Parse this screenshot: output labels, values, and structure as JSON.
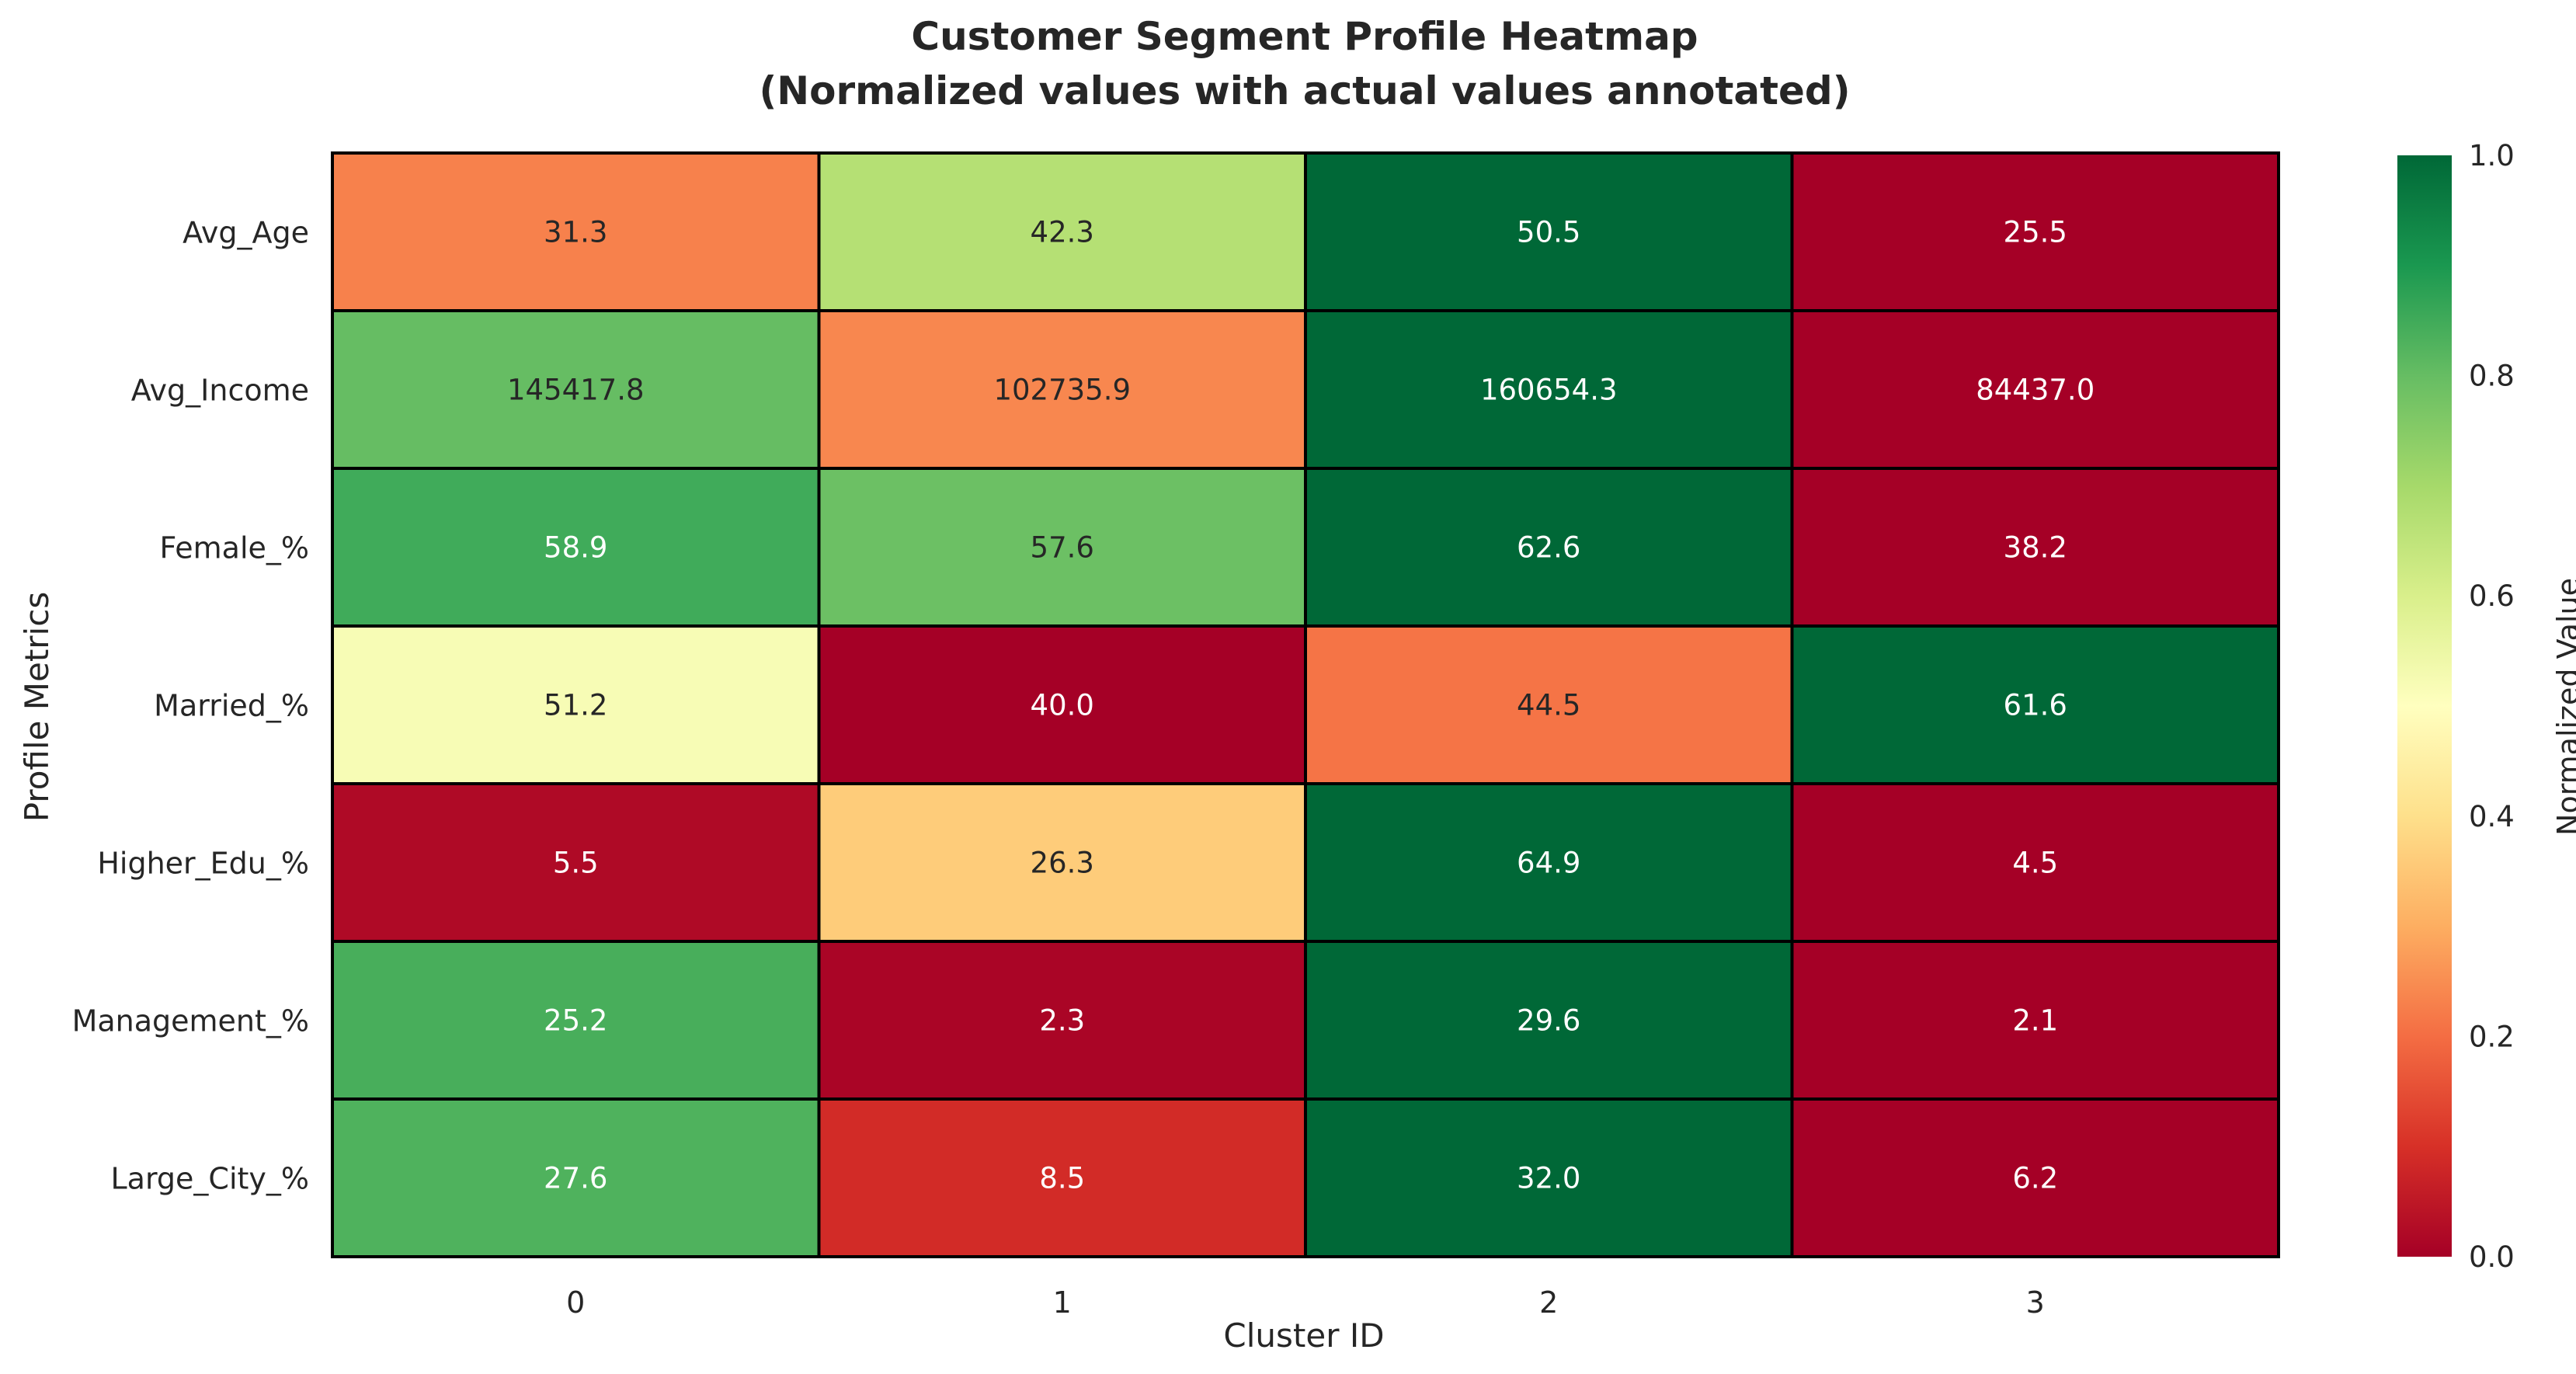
{
  "chart_data": {
    "type": "heatmap",
    "title": "Customer Segment Profile Heatmap",
    "subtitle": "(Normalized values with actual values annotated)",
    "xlabel": "Cluster ID",
    "ylabel": "Profile Metrics",
    "x_categories": [
      "0",
      "1",
      "2",
      "3"
    ],
    "y_categories": [
      "Avg_Age",
      "Avg_Income",
      "Female_%",
      "Married_%",
      "Higher_Edu_%",
      "Management_%",
      "Large_City_%"
    ],
    "annotations": [
      [
        "31.3",
        "42.3",
        "50.5",
        "25.5"
      ],
      [
        "145417.8",
        "102735.9",
        "160654.3",
        "84437.0"
      ],
      [
        "58.9",
        "57.6",
        "62.6",
        "38.2"
      ],
      [
        "51.2",
        "40.0",
        "44.5",
        "61.6"
      ],
      [
        "5.5",
        "26.3",
        "64.9",
        "4.5"
      ],
      [
        "25.2",
        "2.3",
        "29.6",
        "2.1"
      ],
      [
        "27.6",
        "8.5",
        "32.0",
        "6.2"
      ]
    ],
    "values": [
      [
        0.23,
        0.67,
        1.0,
        0.0
      ],
      [
        0.8,
        0.24,
        1.0,
        0.0
      ],
      [
        0.85,
        0.79,
        1.0,
        0.0
      ],
      [
        0.52,
        0.0,
        0.21,
        1.0
      ],
      [
        0.02,
        0.36,
        1.0,
        0.0
      ],
      [
        0.84,
        0.01,
        1.0,
        0.0
      ],
      [
        0.83,
        0.09,
        1.0,
        0.0
      ]
    ],
    "colorbar": {
      "label": "Normalized Value",
      "range": [
        0,
        1
      ],
      "ticks": [
        "0.0",
        "0.2",
        "0.4",
        "0.6",
        "0.8",
        "1.0"
      ],
      "colormap": "RdYlGn"
    },
    "colormap_stops": [
      "#a50026",
      "#d73027",
      "#f46d43",
      "#fdae61",
      "#fee08b",
      "#ffffbf",
      "#d9ef8b",
      "#a6d96a",
      "#66bd63",
      "#1a9850",
      "#006837"
    ],
    "grid": false
  }
}
